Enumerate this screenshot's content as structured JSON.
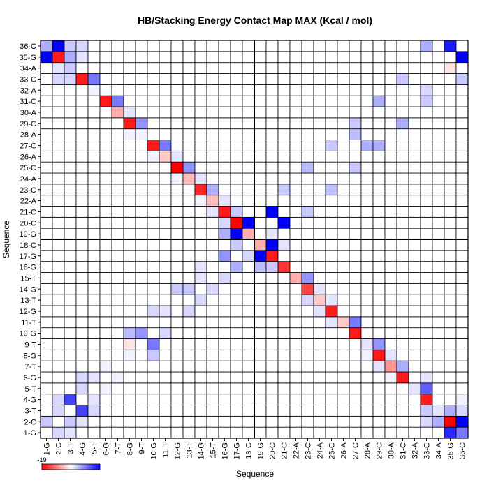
{
  "chart_data": {
    "type": "heatmap",
    "title": "HB/Stacking Energy Contact Map MAX (Kcal / mol)",
    "xlabel": "Sequence",
    "ylabel": "Sequence",
    "x_categories": [
      "1-G",
      "2-C",
      "3-T",
      "4-G",
      "5-T",
      "6-G",
      "7-T",
      "8-G",
      "9-T",
      "10-G",
      "11-T",
      "12-G",
      "13-T",
      "14-G",
      "15-T",
      "16-G",
      "17-G",
      "18-C",
      "19-G",
      "20-C",
      "21-C",
      "22-A",
      "23-C",
      "24-A",
      "25-C",
      "26-A",
      "27-C",
      "28-A",
      "29-C",
      "30-A",
      "31-C",
      "32-A",
      "33-C",
      "34-A",
      "35-G",
      "36-C"
    ],
    "y_categories": [
      "1-G",
      "2-C",
      "3-T",
      "4-G",
      "5-T",
      "6-G",
      "7-T",
      "8-G",
      "9-T",
      "10-G",
      "11-T",
      "12-G",
      "13-T",
      "14-G",
      "15-T",
      "16-G",
      "17-G",
      "18-C",
      "19-G",
      "20-C",
      "21-C",
      "22-A",
      "23-C",
      "24-A",
      "25-C",
      "26-A",
      "27-C",
      "28-A",
      "29-C",
      "30-A",
      "31-C",
      "32-A",
      "33-C",
      "34-A",
      "35-G",
      "36-C"
    ],
    "values": [
      [
        0,
        3,
        2,
        0,
        0,
        0,
        0,
        0,
        0,
        0,
        0,
        0,
        0,
        0,
        0,
        0,
        0,
        0,
        0,
        0,
        0,
        0,
        0,
        0,
        0,
        0,
        0,
        0,
        0,
        0,
        0,
        0,
        0,
        0,
        16,
        10
      ],
      [
        4,
        0,
        4,
        2,
        0,
        0,
        0,
        0,
        0,
        0,
        0,
        0,
        0,
        0,
        0,
        0,
        0,
        0,
        0,
        0,
        0,
        0,
        0,
        0,
        0,
        0,
        0,
        0,
        0,
        0,
        0,
        0,
        3,
        6,
        -19,
        19
      ],
      [
        0,
        3,
        0,
        14,
        3,
        0,
        0,
        0,
        0,
        0,
        0,
        0,
        0,
        0,
        0,
        0,
        0,
        0,
        0,
        0,
        0,
        0,
        0,
        0,
        0,
        0,
        0,
        0,
        0,
        0,
        0,
        0,
        4,
        2,
        6,
        3
      ],
      [
        0,
        3,
        14,
        0,
        2,
        0,
        0,
        0,
        0,
        0,
        0,
        0,
        0,
        0,
        0,
        0,
        0,
        0,
        0,
        0,
        0,
        0,
        0,
        0,
        0,
        0,
        0,
        0,
        0,
        0,
        0,
        0,
        -17,
        0,
        0,
        1
      ],
      [
        0,
        0,
        0,
        3,
        0,
        1,
        0,
        0,
        0,
        0,
        0,
        0,
        0,
        0,
        0,
        0,
        0,
        0,
        0,
        0,
        0,
        0,
        0,
        0,
        0,
        0,
        0,
        0,
        0,
        0,
        0,
        2,
        12,
        0,
        0,
        0
      ],
      [
        0,
        0,
        0,
        3,
        2,
        0,
        1,
        0,
        0,
        0,
        0,
        0,
        0,
        0,
        0,
        0,
        0,
        0,
        0,
        0,
        0,
        0,
        0,
        0,
        0,
        0,
        0,
        0,
        0,
        1,
        -17,
        0,
        2,
        0,
        0,
        0
      ],
      [
        0,
        0,
        0,
        0,
        0,
        1,
        0,
        0,
        0,
        0,
        0,
        0,
        0,
        0,
        0,
        0,
        0,
        0,
        0,
        0,
        0,
        0,
        0,
        0,
        0,
        0,
        0,
        0,
        2,
        -8,
        6,
        0,
        0,
        0,
        0,
        0
      ],
      [
        0,
        0,
        0,
        0,
        0,
        0,
        0,
        1,
        0,
        4,
        0,
        0,
        0,
        0,
        0,
        0,
        0,
        0,
        0,
        0,
        0,
        0,
        0,
        0,
        0,
        0,
        0,
        1,
        -17,
        2,
        0,
        0,
        0,
        0,
        0,
        0
      ],
      [
        0,
        0,
        0,
        0,
        0,
        0,
        0,
        -2,
        0,
        10,
        0,
        0,
        0,
        0,
        0,
        0,
        0,
        0,
        0,
        0,
        0,
        0,
        0,
        0,
        0,
        0,
        0,
        2,
        8,
        0,
        0,
        0,
        0,
        0,
        0,
        0
      ],
      [
        0,
        0,
        0,
        0,
        0,
        0,
        0,
        5,
        8,
        0,
        3,
        0,
        0,
        0,
        0,
        0,
        0,
        0,
        0,
        0,
        0,
        0,
        0,
        0,
        0,
        0,
        -17,
        0,
        0,
        0,
        0,
        0,
        0,
        0,
        0,
        0
      ],
      [
        0,
        0,
        0,
        0,
        0,
        0,
        0,
        0,
        0,
        0,
        0,
        0,
        0,
        0,
        0,
        0,
        0,
        0,
        0,
        0,
        0,
        0,
        0,
        0,
        2,
        -4,
        10,
        0,
        0,
        0,
        0,
        0,
        0,
        0,
        0,
        0
      ],
      [
        0,
        0,
        0,
        0,
        0,
        0,
        0,
        0,
        0,
        3,
        2,
        0,
        3,
        0,
        0,
        0,
        0,
        0,
        0,
        0,
        0,
        0,
        0,
        2,
        -17,
        0,
        0,
        0,
        0,
        0,
        0,
        0,
        0,
        0,
        0,
        0
      ],
      [
        0,
        0,
        0,
        0,
        0,
        0,
        0,
        0,
        0,
        0,
        0,
        0,
        0,
        3,
        0,
        0,
        0,
        0,
        0,
        0,
        0,
        0,
        3,
        -4,
        2,
        0,
        0,
        0,
        0,
        0,
        0,
        0,
        0,
        0,
        0,
        0
      ],
      [
        0,
        0,
        0,
        0,
        0,
        0,
        0,
        0,
        0,
        0,
        0,
        4,
        4,
        0,
        3,
        0,
        0,
        0,
        0,
        0,
        0,
        0,
        -14,
        2,
        0,
        0,
        0,
        0,
        0,
        0,
        0,
        0,
        0,
        0,
        0,
        0
      ],
      [
        0,
        0,
        0,
        0,
        0,
        0,
        0,
        0,
        0,
        0,
        0,
        0,
        0,
        2,
        0,
        3,
        0,
        0,
        0,
        0,
        0,
        -6,
        8,
        0,
        0,
        0,
        0,
        0,
        0,
        0,
        0,
        0,
        0,
        0,
        0,
        0
      ],
      [
        0,
        0,
        0,
        0,
        0,
        0,
        0,
        0,
        0,
        0,
        0,
        0,
        0,
        2,
        0,
        0,
        6,
        0,
        5,
        4,
        -15,
        0,
        0,
        0,
        0,
        0,
        0,
        0,
        0,
        0,
        0,
        0,
        0,
        0,
        0,
        0
      ],
      [
        0,
        0,
        0,
        0,
        0,
        0,
        0,
        0,
        0,
        0,
        0,
        0,
        0,
        0,
        0,
        8,
        0,
        3,
        19,
        -17,
        0,
        0,
        0,
        0,
        0,
        0,
        0,
        0,
        0,
        0,
        0,
        0,
        0,
        0,
        0,
        0
      ],
      [
        0,
        0,
        0,
        0,
        0,
        0,
        0,
        0,
        0,
        0,
        0,
        0,
        0,
        0,
        0,
        0,
        4,
        0,
        -6,
        19,
        2,
        0,
        0,
        0,
        0,
        0,
        0,
        0,
        0,
        0,
        0,
        0,
        0,
        0,
        0,
        0
      ],
      [
        0,
        0,
        0,
        0,
        0,
        0,
        0,
        0,
        0,
        0,
        0,
        0,
        0,
        0,
        0,
        6,
        19,
        -6,
        0,
        2,
        0,
        0,
        0,
        0,
        0,
        0,
        0,
        0,
        0,
        0,
        0,
        0,
        0,
        0,
        0,
        0
      ],
      [
        0,
        0,
        0,
        0,
        0,
        0,
        0,
        0,
        0,
        0,
        0,
        0,
        0,
        0,
        0,
        3,
        -19,
        19,
        0,
        0,
        19,
        0,
        0,
        0,
        0,
        0,
        0,
        0,
        0,
        0,
        0,
        0,
        0,
        0,
        0,
        0
      ],
      [
        0,
        0,
        0,
        0,
        0,
        0,
        0,
        0,
        0,
        0,
        0,
        0,
        0,
        0,
        2,
        -17,
        4,
        0,
        0,
        19,
        0,
        0,
        4,
        0,
        0,
        0,
        0,
        0,
        0,
        0,
        0,
        0,
        0,
        0,
        0,
        0
      ],
      [
        0,
        0,
        0,
        0,
        0,
        0,
        0,
        0,
        0,
        0,
        0,
        0,
        0,
        1,
        -5,
        2,
        0,
        0,
        0,
        0,
        0,
        0,
        0,
        0,
        0,
        0,
        0,
        0,
        0,
        0,
        0,
        0,
        0,
        0,
        0,
        0
      ],
      [
        0,
        0,
        0,
        0,
        0,
        0,
        0,
        0,
        0,
        0,
        0,
        0,
        0,
        -16,
        6,
        0,
        0,
        0,
        0,
        0,
        4,
        0,
        0,
        0,
        5,
        0,
        0,
        0,
        0,
        0,
        0,
        0,
        0,
        0,
        0,
        0
      ],
      [
        0,
        0,
        0,
        0,
        0,
        0,
        0,
        0,
        0,
        0,
        0,
        1,
        -5,
        2,
        0,
        0,
        0,
        0,
        0,
        0,
        0,
        0,
        0,
        0,
        0,
        0,
        0,
        0,
        0,
        0,
        0,
        0,
        0,
        0,
        0,
        0
      ],
      [
        0,
        0,
        0,
        0,
        0,
        0,
        0,
        0,
        0,
        0,
        0,
        -19,
        8,
        0,
        0,
        0,
        0,
        0,
        0,
        0,
        0,
        0,
        5,
        0,
        0,
        0,
        4,
        0,
        0,
        0,
        0,
        0,
        0,
        0,
        0,
        0
      ],
      [
        0,
        0,
        0,
        0,
        0,
        0,
        0,
        0,
        0,
        1,
        -4,
        2,
        0,
        0,
        0,
        0,
        0,
        0,
        0,
        0,
        0,
        0,
        0,
        0,
        0,
        0,
        0,
        0,
        0,
        0,
        0,
        0,
        0,
        0,
        0,
        0
      ],
      [
        0,
        0,
        0,
        0,
        0,
        0,
        0,
        0,
        0,
        -17,
        10,
        0,
        0,
        0,
        0,
        0,
        0,
        0,
        0,
        0,
        0,
        0,
        0,
        0,
        4,
        0,
        0,
        6,
        6,
        0,
        0,
        0,
        0,
        0,
        0,
        0
      ],
      [
        0,
        0,
        0,
        0,
        0,
        0,
        0,
        1,
        1,
        0,
        0,
        0,
        0,
        0,
        0,
        0,
        0,
        0,
        0,
        0,
        0,
        0,
        0,
        0,
        0,
        0,
        5,
        0,
        0,
        0,
        0,
        0,
        0,
        0,
        0,
        0
      ],
      [
        0,
        0,
        0,
        0,
        0,
        0,
        0,
        -17,
        8,
        0,
        0,
        0,
        0,
        0,
        0,
        0,
        0,
        0,
        0,
        0,
        0,
        0,
        0,
        0,
        0,
        0,
        4,
        0,
        0,
        0,
        6,
        0,
        0,
        0,
        0,
        0
      ],
      [
        0,
        0,
        0,
        0,
        0,
        0,
        -6,
        2,
        0,
        0,
        0,
        0,
        0,
        0,
        0,
        0,
        0,
        0,
        0,
        0,
        0,
        0,
        0,
        0,
        0,
        0,
        0,
        0,
        0,
        0,
        0,
        0,
        0,
        0,
        0,
        0
      ],
      [
        0,
        0,
        0,
        0,
        0,
        -17,
        10,
        0,
        0,
        0,
        0,
        0,
        0,
        0,
        0,
        0,
        0,
        0,
        0,
        0,
        0,
        0,
        0,
        0,
        0,
        0,
        0,
        0,
        6,
        0,
        0,
        0,
        4,
        0,
        0,
        0
      ],
      [
        0,
        0,
        0,
        0,
        1,
        0,
        0,
        0,
        0,
        0,
        0,
        0,
        0,
        0,
        0,
        0,
        0,
        0,
        0,
        0,
        0,
        0,
        0,
        0,
        0,
        0,
        0,
        0,
        0,
        0,
        0,
        0,
        3,
        0,
        0,
        0
      ],
      [
        0,
        3,
        3,
        -17,
        10,
        0,
        0,
        0,
        0,
        0,
        0,
        0,
        0,
        0,
        0,
        0,
        0,
        0,
        0,
        0,
        0,
        0,
        0,
        0,
        0,
        0,
        0,
        0,
        0,
        0,
        4,
        0,
        0,
        0,
        0,
        4
      ],
      [
        0,
        2,
        4,
        0,
        0,
        0,
        0,
        0,
        0,
        0,
        0,
        0,
        0,
        0,
        0,
        0,
        0,
        0,
        0,
        0,
        0,
        0,
        0,
        0,
        0,
        0,
        0,
        0,
        0,
        0,
        0,
        0,
        0,
        0,
        -2,
        0
      ],
      [
        19,
        -17,
        6,
        2,
        0,
        0,
        0,
        0,
        0,
        0,
        0,
        0,
        0,
        0,
        0,
        0,
        0,
        0,
        0,
        0,
        0,
        0,
        0,
        0,
        0,
        0,
        0,
        0,
        0,
        0,
        0,
        0,
        0,
        0,
        0,
        19
      ],
      [
        6,
        19,
        4,
        3,
        0,
        0,
        0,
        0,
        0,
        0,
        0,
        0,
        0,
        0,
        0,
        0,
        0,
        0,
        0,
        0,
        0,
        0,
        0,
        0,
        0,
        0,
        0,
        0,
        0,
        0,
        0,
        0,
        6,
        0,
        17,
        0
      ]
    ],
    "zlim": [
      -19,
      19
    ],
    "zticks": [
      -19
    ],
    "low_color": "#ff0000",
    "mid_color": "#ffffff",
    "high_color": "#0000ff"
  }
}
